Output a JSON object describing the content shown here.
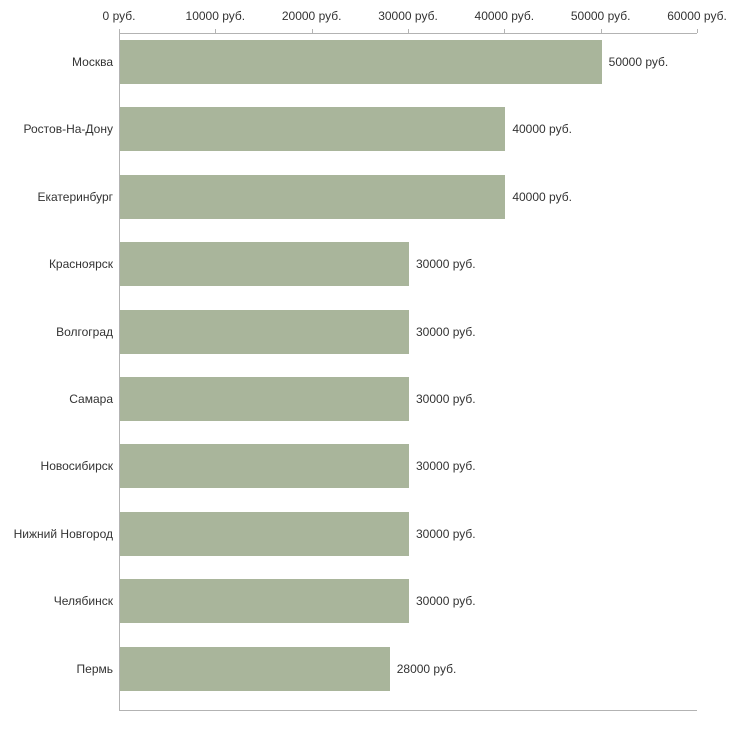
{
  "chart_data": {
    "type": "bar",
    "orientation": "horizontal",
    "title": "",
    "categories": [
      "Москва",
      "Ростов-На-Дону",
      "Екатеринбург",
      "Красноярск",
      "Волгоград",
      "Самара",
      "Новосибирск",
      "Нижний Новгород",
      "Челябинск",
      "Пермь"
    ],
    "values": [
      50000,
      40000,
      40000,
      30000,
      30000,
      30000,
      30000,
      30000,
      30000,
      28000
    ],
    "value_labels": [
      "50000 руб.",
      "40000 руб.",
      "40000 руб.",
      "30000 руб.",
      "30000 руб.",
      "30000 руб.",
      "30000 руб.",
      "30000 руб.",
      "30000 руб.",
      "28000 руб."
    ],
    "x_ticks": [
      0,
      10000,
      20000,
      30000,
      40000,
      50000,
      60000
    ],
    "x_tick_labels": [
      "0 руб.",
      "10000 руб.",
      "20000 руб.",
      "30000 руб.",
      "40000 руб.",
      "50000 руб.",
      "60000 руб."
    ],
    "xlim": [
      0,
      60000
    ],
    "grid": false,
    "legend_position": "none",
    "bar_color": "#a9b59b",
    "axis_color": "#b3b3b3",
    "text_color": "#333333"
  }
}
